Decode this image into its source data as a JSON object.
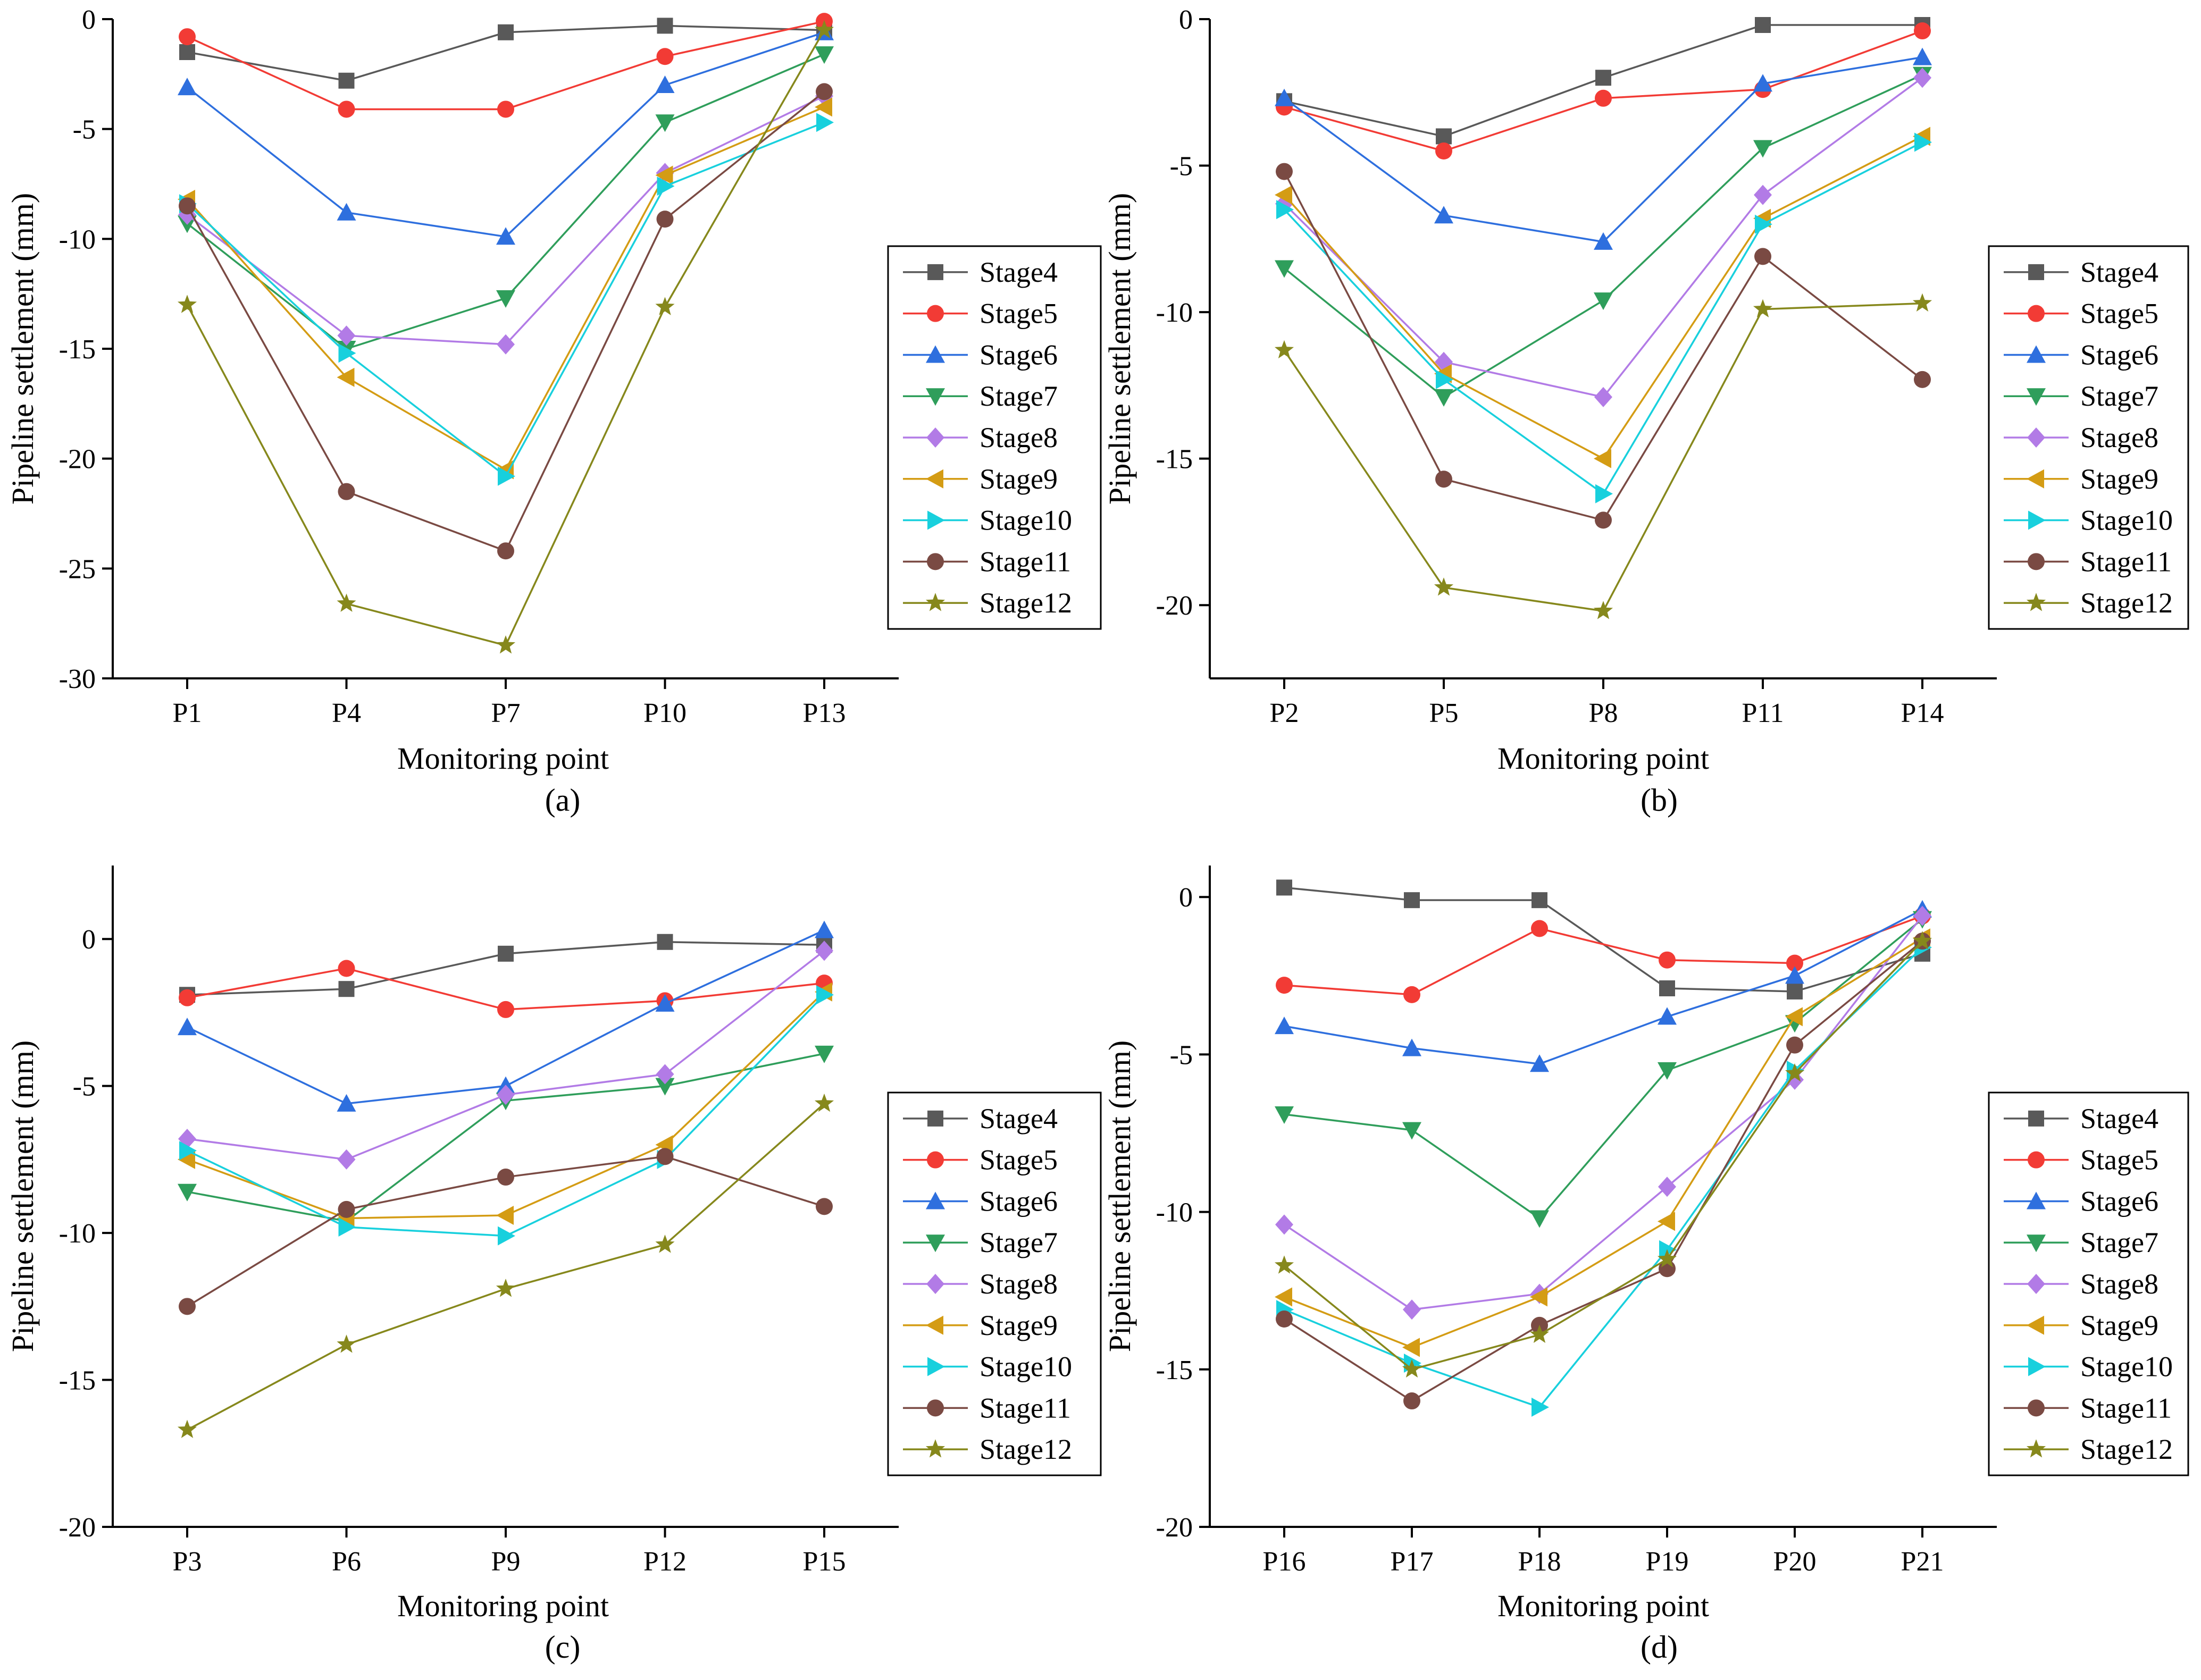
{
  "chart_data": [
    {
      "type": "line",
      "panel": "a",
      "caption": "(a)",
      "xlabel": "Monitoring point",
      "ylabel": "Pipeline settlement (mm)",
      "categories": [
        "P1",
        "P4",
        "P7",
        "P10",
        "P13"
      ],
      "ylim": [
        -30,
        0
      ],
      "yticks": [
        0,
        -5,
        -10,
        -15,
        -20,
        -25,
        -30
      ],
      "series": [
        {
          "name": "Stage4",
          "values": [
            -1.5,
            -2.8,
            -0.6,
            -0.3,
            -0.5
          ]
        },
        {
          "name": "Stage5",
          "values": [
            -0.8,
            -4.1,
            -4.1,
            -1.7,
            -0.1
          ]
        },
        {
          "name": "Stage6",
          "values": [
            -3.1,
            -8.8,
            -9.9,
            -3.0,
            -0.6
          ]
        },
        {
          "name": "Stage7",
          "values": [
            -9.3,
            -15.0,
            -12.7,
            -4.7,
            -1.6
          ]
        },
        {
          "name": "Stage8",
          "values": [
            -8.9,
            -14.4,
            -14.8,
            -7.0,
            -3.5
          ]
        },
        {
          "name": "Stage9",
          "values": [
            -8.2,
            -16.3,
            -20.5,
            -7.1,
            -4.0
          ]
        },
        {
          "name": "Stage10",
          "values": [
            -8.4,
            -15.2,
            -20.8,
            -7.6,
            -4.7
          ]
        },
        {
          "name": "Stage11",
          "values": [
            -8.5,
            -21.5,
            -24.2,
            -9.1,
            -3.3
          ]
        },
        {
          "name": "Stage12",
          "values": [
            -13.0,
            -26.6,
            -28.5,
            -13.1,
            -0.5
          ]
        }
      ]
    },
    {
      "type": "line",
      "panel": "b",
      "caption": "(b)",
      "xlabel": "Monitoring point",
      "ylabel": "Pipeline settlement (mm)",
      "categories": [
        "P2",
        "P5",
        "P8",
        "P11",
        "P14"
      ],
      "ylim": [
        -22.5,
        0
      ],
      "yticks": [
        0,
        -5,
        -10,
        -15,
        -20
      ],
      "series": [
        {
          "name": "Stage4",
          "values": [
            -2.8,
            -4.0,
            -2.0,
            -0.2,
            -0.2
          ]
        },
        {
          "name": "Stage5",
          "values": [
            -3.0,
            -4.5,
            -2.7,
            -2.4,
            -0.4
          ]
        },
        {
          "name": "Stage6",
          "values": [
            -2.7,
            -6.7,
            -7.6,
            -2.2,
            -1.3
          ]
        },
        {
          "name": "Stage7",
          "values": [
            -8.5,
            -12.9,
            -9.6,
            -4.4,
            -1.9
          ]
        },
        {
          "name": "Stage8",
          "values": [
            -6.3,
            -11.7,
            -12.9,
            -6.0,
            -2.0
          ]
        },
        {
          "name": "Stage9",
          "values": [
            -6.0,
            -12.1,
            -15.0,
            -6.8,
            -4.0
          ]
        },
        {
          "name": "Stage10",
          "values": [
            -6.5,
            -12.3,
            -16.2,
            -7.0,
            -4.2
          ]
        },
        {
          "name": "Stage11",
          "values": [
            -5.2,
            -15.7,
            -17.1,
            -8.1,
            -12.3
          ]
        },
        {
          "name": "Stage12",
          "values": [
            -11.3,
            -19.4,
            -20.2,
            -9.9,
            -9.7
          ]
        }
      ]
    },
    {
      "type": "line",
      "panel": "c",
      "caption": "(c)",
      "xlabel": "Monitoring point",
      "ylabel": "Pipeline settlement (mm)",
      "categories": [
        "P3",
        "P6",
        "P9",
        "P12",
        "P15"
      ],
      "ylim": [
        -20,
        2.5
      ],
      "yticks": [
        0,
        -5,
        -10,
        -15,
        -20
      ],
      "series": [
        {
          "name": "Stage4",
          "values": [
            -1.9,
            -1.7,
            -0.5,
            -0.1,
            -0.2
          ]
        },
        {
          "name": "Stage5",
          "values": [
            -2.0,
            -1.0,
            -2.4,
            -2.1,
            -1.5
          ]
        },
        {
          "name": "Stage6",
          "values": [
            -3.0,
            -5.6,
            -5.0,
            -2.2,
            0.3
          ]
        },
        {
          "name": "Stage7",
          "values": [
            -8.6,
            -9.6,
            -5.5,
            -5.0,
            -3.9
          ]
        },
        {
          "name": "Stage8",
          "values": [
            -6.8,
            -7.5,
            -5.3,
            -4.6,
            -0.4
          ]
        },
        {
          "name": "Stage9",
          "values": [
            -7.5,
            -9.5,
            -9.4,
            -7.0,
            -1.8
          ]
        },
        {
          "name": "Stage10",
          "values": [
            -7.2,
            -9.8,
            -10.1,
            -7.5,
            -1.9
          ]
        },
        {
          "name": "Stage11",
          "values": [
            -12.5,
            -9.2,
            -8.1,
            -7.4,
            -9.1
          ]
        },
        {
          "name": "Stage12",
          "values": [
            -16.7,
            -13.8,
            -11.9,
            -10.4,
            -5.6
          ]
        }
      ]
    },
    {
      "type": "line",
      "panel": "d",
      "caption": "(d)",
      "xlabel": "Monitoring point",
      "ylabel": "Pipeline settlement (mm)",
      "categories": [
        "P16",
        "P17",
        "P18",
        "P19",
        "P20",
        "P21"
      ],
      "ylim": [
        -20,
        1
      ],
      "yticks": [
        0,
        -5,
        -10,
        -15,
        -20
      ],
      "series": [
        {
          "name": "Stage4",
          "values": [
            0.3,
            -0.1,
            -0.1,
            -2.9,
            -3.0,
            -1.8
          ]
        },
        {
          "name": "Stage5",
          "values": [
            -2.8,
            -3.1,
            -1.0,
            -2.0,
            -2.1,
            -0.6
          ]
        },
        {
          "name": "Stage6",
          "values": [
            -4.1,
            -4.8,
            -5.3,
            -3.8,
            -2.5,
            -0.4
          ]
        },
        {
          "name": "Stage7",
          "values": [
            -6.9,
            -7.4,
            -10.2,
            -5.5,
            -4.0,
            -0.7
          ]
        },
        {
          "name": "Stage8",
          "values": [
            -10.4,
            -13.1,
            -12.6,
            -9.2,
            -5.8,
            -0.6
          ]
        },
        {
          "name": "Stage9",
          "values": [
            -12.7,
            -14.3,
            -12.7,
            -10.3,
            -3.8,
            -1.3
          ]
        },
        {
          "name": "Stage10",
          "values": [
            -13.1,
            -14.8,
            -16.2,
            -11.2,
            -5.5,
            -1.6
          ]
        },
        {
          "name": "Stage11",
          "values": [
            -13.4,
            -16.0,
            -13.6,
            -11.8,
            -4.7,
            -1.4
          ]
        },
        {
          "name": "Stage12",
          "values": [
            -11.7,
            -15.0,
            -13.9,
            -11.5,
            -5.6,
            -1.4
          ]
        }
      ]
    }
  ],
  "series_colors": [
    "#595959",
    "#f23b35",
    "#2e6fde",
    "#2f9e5b",
    "#b27be6",
    "#d49c14",
    "#18d0dd",
    "#7a4a43",
    "#86881c"
  ],
  "series_markers": [
    "square-icon",
    "circle-icon",
    "triangle-up-icon",
    "triangle-down-icon",
    "diamond-icon",
    "triangle-left-icon",
    "triangle-right-icon",
    "circle-icon",
    "star-icon"
  ]
}
